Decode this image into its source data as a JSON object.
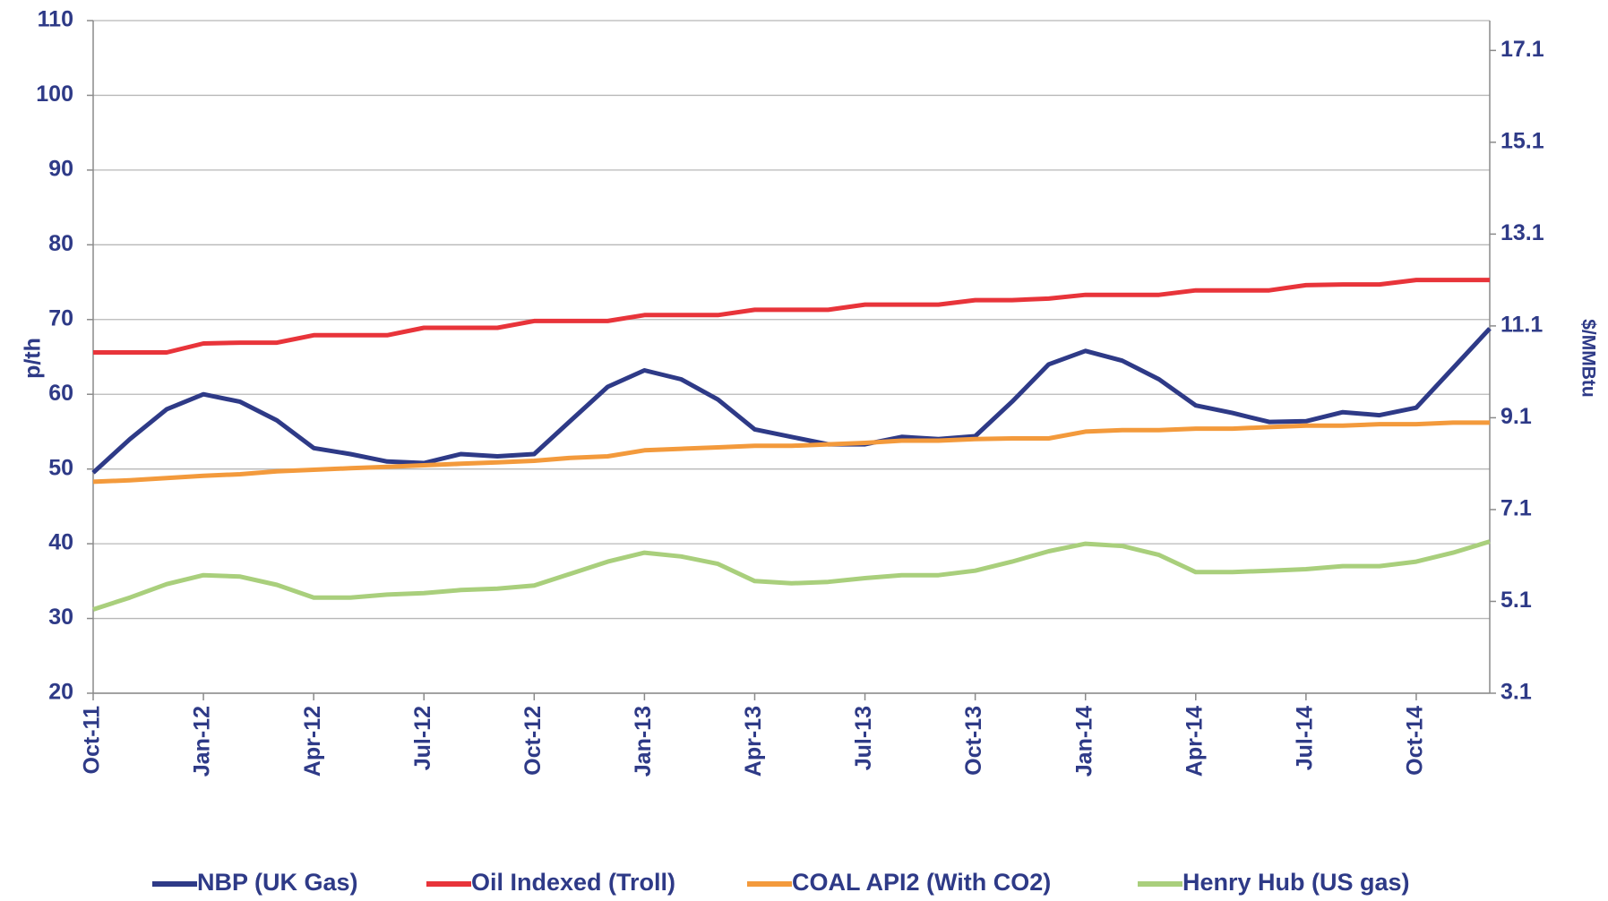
{
  "chart_data": {
    "type": "line",
    "ylabel": "p/th",
    "y2label": "$/MMBtu",
    "categories": [
      "Oct-11",
      null,
      null,
      "Jan-12",
      null,
      null,
      "Apr-12",
      null,
      null,
      "Jul-12",
      null,
      null,
      "Oct-12",
      null,
      null,
      "Jan-13",
      null,
      null,
      "Apr-13",
      null,
      null,
      "Jul-13",
      null,
      null,
      "Oct-13",
      null,
      null,
      "Jan-14",
      null,
      null,
      "Apr-14",
      null,
      null,
      "Jul-14",
      null,
      null,
      "Oct-14",
      null,
      null
    ],
    "series": [
      {
        "name": "NBP (UK Gas)",
        "color": "#2e3a87",
        "values": [
          49.5,
          54,
          58,
          60,
          59,
          56.5,
          52.8,
          52,
          51,
          50.8,
          52,
          51.7,
          52,
          56.5,
          61,
          63.2,
          62,
          59.3,
          55.3,
          54.3,
          53.3,
          53.3,
          54.3,
          54,
          54.4,
          59,
          64,
          65.8,
          64.5,
          62,
          58.5,
          57.5,
          56.3,
          56.4,
          57.6,
          57.2,
          58.2,
          63.5,
          68.8
        ]
      },
      {
        "name": "Oil Indexed (Troll)",
        "color": "#e8343a",
        "values": [
          65.6,
          65.6,
          65.6,
          66.8,
          66.9,
          66.9,
          67.9,
          67.9,
          67.9,
          68.9,
          68.9,
          68.9,
          69.8,
          69.8,
          69.8,
          70.6,
          70.6,
          70.6,
          71.3,
          71.3,
          71.3,
          72,
          72,
          72,
          72.6,
          72.6,
          72.8,
          73.3,
          73.3,
          73.3,
          73.9,
          73.9,
          73.9,
          74.6,
          74.7,
          74.7,
          75.3,
          75.3,
          75.3
        ]
      },
      {
        "name": "COAL API2 (With CO2)",
        "color": "#f39a3c",
        "values": [
          48.3,
          48.5,
          48.8,
          49.1,
          49.3,
          49.7,
          49.9,
          50.1,
          50.3,
          50.5,
          50.7,
          50.9,
          51.1,
          51.5,
          51.7,
          52.5,
          52.7,
          52.9,
          53.1,
          53.1,
          53.3,
          53.5,
          53.8,
          53.8,
          54,
          54.1,
          54.1,
          55,
          55.2,
          55.2,
          55.4,
          55.4,
          55.6,
          55.8,
          55.8,
          56,
          56,
          56.2,
          56.2
        ]
      },
      {
        "name": "Henry Hub (US gas)",
        "color": "#a9cf7c",
        "values": [
          31.2,
          32.8,
          34.6,
          35.8,
          35.6,
          34.5,
          32.8,
          32.8,
          33.2,
          33.4,
          33.8,
          34,
          34.4,
          36,
          37.6,
          38.8,
          38.3,
          37.3,
          35,
          34.7,
          34.9,
          35.4,
          35.8,
          35.8,
          36.4,
          37.6,
          39,
          40,
          39.7,
          38.5,
          36.2,
          36.2,
          36.4,
          36.6,
          37,
          37,
          37.6,
          38.8,
          40.3
        ]
      }
    ],
    "ylim": [
      20,
      110
    ],
    "yticks": [
      20,
      30,
      40,
      50,
      60,
      70,
      80,
      90,
      100,
      110
    ],
    "y2lim": [
      3.1,
      17.75
    ],
    "y2ticks": [
      3.1,
      5.1,
      7.1,
      9.1,
      11.1,
      13.1,
      15.1,
      17.1
    ],
    "grid": true,
    "legend": "bottom"
  }
}
